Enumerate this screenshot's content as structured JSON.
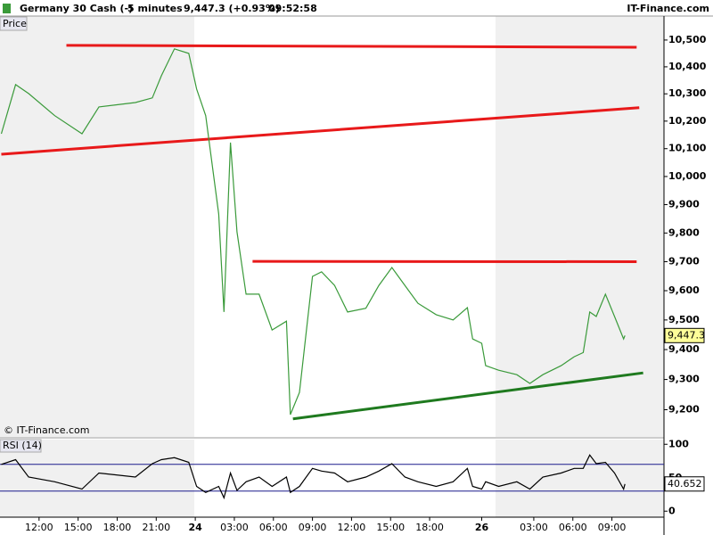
{
  "header": {
    "instrument": "Germany 30 Cash (-)",
    "interval": "5 minutes",
    "quote": "9,447.3 (+0.93%)",
    "time": "09:52:58",
    "site": "IT-Finance.com",
    "watermark": "© IT-Finance.com"
  },
  "chart_data": [
    {
      "type": "line",
      "y_label": "Price",
      "log_scale": true,
      "color": "#3a9a3a",
      "x": [
        -2.9,
        -1.8,
        -0.8,
        1.2,
        3.3,
        4.6,
        7.4,
        8.7,
        9.4,
        10.4,
        11.5,
        12.1,
        12.8,
        13.8,
        14.2,
        14.7,
        15.2,
        15.9,
        16.9,
        17.9,
        19,
        19.3,
        20,
        21,
        21.7,
        22.7,
        23.7,
        25.1,
        26.1,
        27.1,
        28.1,
        29.1,
        30.5,
        31.8,
        32.9,
        33.3,
        34,
        34.3,
        35.3,
        36.7,
        37.7,
        38.7,
        40.1,
        41.1,
        41.8,
        42.3,
        42.8,
        43.5,
        44.2,
        44.9,
        45
      ],
      "values": [
        10154,
        10334,
        10301,
        10220,
        10154,
        10252,
        10268,
        10285,
        10367,
        10467,
        10450,
        10318,
        10220,
        9867,
        9527,
        10122,
        9804,
        9588,
        9588,
        9466,
        9496,
        9184,
        9257,
        9649,
        9665,
        9618,
        9527,
        9540,
        9618,
        9680,
        9618,
        9557,
        9518,
        9500,
        9542,
        9436,
        9421,
        9346,
        9331,
        9316,
        9287,
        9316,
        9346,
        9376,
        9390,
        9527,
        9512,
        9588,
        9512,
        9436,
        9447.3
      ],
      "xlim": [
        -3,
        48
      ],
      "ylim": [
        9111,
        10550
      ],
      "yticks": [
        {
          "value": 9200,
          "label": "9,200"
        },
        {
          "value": 9300,
          "label": "9,300"
        },
        {
          "value": 9400,
          "label": "9,400"
        },
        {
          "value": 9500,
          "label": "9,500"
        },
        {
          "value": 9600,
          "label": "9,600"
        },
        {
          "value": 9700,
          "label": "9,700"
        },
        {
          "value": 9800,
          "label": "9,800"
        },
        {
          "value": 9900,
          "label": "9,900"
        },
        {
          "value": 10000,
          "label": "10,000"
        },
        {
          "value": 10100,
          "label": "10,100"
        },
        {
          "value": 10200,
          "label": "10,200"
        },
        {
          "value": 10300,
          "label": "10,300"
        },
        {
          "value": 10400,
          "label": "10,400"
        },
        {
          "value": 10500,
          "label": "10,500"
        }
      ],
      "last_value": {
        "value": 9447.3,
        "label": "9,447.3"
      },
      "lines": [
        {
          "color": "#e8191a",
          "x": [
            2.1,
            45.9
          ],
          "y": [
            10480,
            10473
          ]
        },
        {
          "color": "#e8191a",
          "x": [
            -2.9,
            46.1
          ],
          "y": [
            10080,
            10249
          ]
        },
        {
          "color": "#e8191a",
          "x": [
            16.4,
            45.9
          ],
          "y": [
            9701,
            9700
          ]
        },
        {
          "color": "#1f7a1f",
          "x": [
            19.5,
            46.4
          ],
          "y": [
            9170,
            9322
          ]
        }
      ]
    },
    {
      "type": "line",
      "title": "RSI (14)",
      "color": "#000000",
      "x": [
        -2.9,
        -1.8,
        -0.8,
        1.2,
        3.3,
        4.6,
        7.4,
        8.7,
        9.4,
        10.4,
        11.5,
        12.1,
        12.8,
        13.8,
        14.2,
        14.7,
        15.2,
        15.9,
        16.9,
        17.9,
        19,
        19.3,
        20,
        21,
        21.7,
        22.7,
        23.7,
        25.1,
        26.1,
        27.1,
        28.1,
        29.1,
        30.5,
        31.8,
        32.9,
        33.3,
        34,
        34.3,
        35.3,
        36.7,
        37.7,
        38.7,
        40.1,
        41.1,
        41.8,
        42.3,
        42.8,
        43.5,
        44.2,
        44.9,
        45
      ],
      "values": [
        70,
        77,
        51,
        44,
        33,
        57,
        51,
        71,
        77,
        80,
        73,
        37,
        28,
        37,
        20,
        57,
        31,
        44,
        51,
        37,
        51,
        28,
        37,
        64,
        60,
        57,
        44,
        51,
        60,
        71,
        51,
        44,
        37,
        44,
        64,
        37,
        33,
        44,
        37,
        44,
        33,
        51,
        57,
        64,
        64,
        84,
        71,
        73,
        57,
        33,
        40.652
      ],
      "xlim": [
        -3,
        48
      ],
      "ylim": [
        -9,
        107
      ],
      "yticks": [
        0,
        50,
        100
      ],
      "levels": [
        70,
        30
      ],
      "last_value": {
        "value": 40.652,
        "label": "40.652"
      },
      "xticks": [
        {
          "value": 0,
          "label": "12:00"
        },
        {
          "value": 3,
          "label": "15:00"
        },
        {
          "value": 6,
          "label": "18:00"
        },
        {
          "value": 9,
          "label": "21:00"
        },
        {
          "value": 12,
          "label": "24"
        },
        {
          "value": 15,
          "label": "03:00"
        },
        {
          "value": 18,
          "label": "06:00"
        },
        {
          "value": 21,
          "label": "09:00"
        },
        {
          "value": 24,
          "label": "12:00"
        },
        {
          "value": 27,
          "label": "15:00"
        },
        {
          "value": 30,
          "label": "18:00"
        },
        {
          "value": 34,
          "label": "26"
        },
        {
          "value": 38,
          "label": "03:00"
        },
        {
          "value": 41,
          "label": "06:00"
        },
        {
          "value": 44,
          "label": "09:00"
        }
      ]
    }
  ]
}
